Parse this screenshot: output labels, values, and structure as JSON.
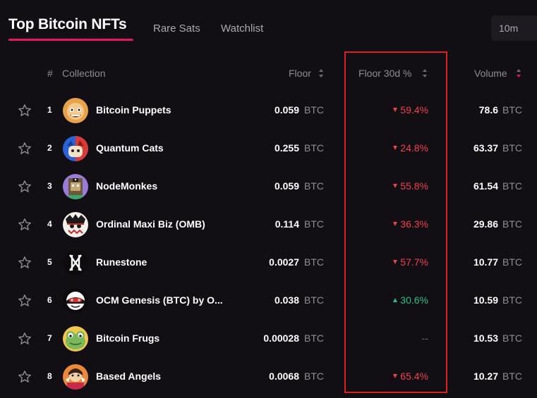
{
  "tabs": {
    "active": "Top Bitcoin NFTs",
    "items": [
      "Rare Sats",
      "Watchlist"
    ],
    "time_range": "10m"
  },
  "headers": {
    "rank": "#",
    "collection": "Collection",
    "floor": "Floor",
    "floor_30d": "Floor 30d %",
    "volume": "Volume"
  },
  "colors": {
    "accent": "#e5175f",
    "down": "#f0404d",
    "up": "#24c183",
    "highlight_box": "#e01f1f"
  },
  "rows": [
    {
      "rank": "1",
      "name": "Bitcoin Puppets",
      "floor": "0.059",
      "floor_unit": "BTC",
      "change": "59.4%",
      "direction": "down",
      "volume": "78.6",
      "volume_unit": "BTC"
    },
    {
      "rank": "2",
      "name": "Quantum Cats",
      "floor": "0.255",
      "floor_unit": "BTC",
      "change": "24.8%",
      "direction": "down",
      "volume": "63.37",
      "volume_unit": "BTC"
    },
    {
      "rank": "3",
      "name": "NodeMonkes",
      "floor": "0.059",
      "floor_unit": "BTC",
      "change": "55.8%",
      "direction": "down",
      "volume": "61.54",
      "volume_unit": "BTC"
    },
    {
      "rank": "4",
      "name": "Ordinal Maxi Biz (OMB)",
      "floor": "0.114",
      "floor_unit": "BTC",
      "change": "36.3%",
      "direction": "down",
      "volume": "29.86",
      "volume_unit": "BTC"
    },
    {
      "rank": "5",
      "name": "Runestone",
      "floor": "0.0027",
      "floor_unit": "BTC",
      "change": "57.7%",
      "direction": "down",
      "volume": "10.77",
      "volume_unit": "BTC"
    },
    {
      "rank": "6",
      "name": "OCM Genesis (BTC) by O...",
      "floor": "0.038",
      "floor_unit": "BTC",
      "change": "30.6%",
      "direction": "up",
      "volume": "10.59",
      "volume_unit": "BTC"
    },
    {
      "rank": "7",
      "name": "Bitcoin Frugs",
      "floor": "0.00028",
      "floor_unit": "BTC",
      "change": "--",
      "direction": "none",
      "volume": "10.53",
      "volume_unit": "BTC"
    },
    {
      "rank": "8",
      "name": "Based Angels",
      "floor": "0.0068",
      "floor_unit": "BTC",
      "change": "65.4%",
      "direction": "down",
      "volume": "10.27",
      "volume_unit": "BTC"
    }
  ],
  "icons": {
    "star": "star-outline-icon",
    "sort": "sort-arrows-icon",
    "trend_down": "triangle-down-icon",
    "trend_up": "triangle-up-icon"
  }
}
